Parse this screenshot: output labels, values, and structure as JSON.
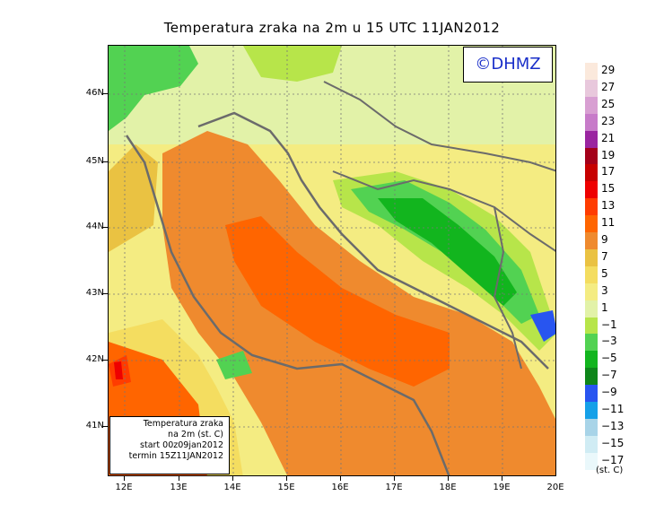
{
  "title": "Temperatura zraka na 2m u 15 UTC 11JAN2012",
  "logo": "©DHMZ",
  "info": {
    "line1": "Temperatura zraka",
    "line2": "na 2m (st. C)",
    "line3": "start 00z09jan2012",
    "line4": "termin 15Z11JAN2012"
  },
  "lat_labels": [
    "46N",
    "45N",
    "44N",
    "43N",
    "42N",
    "41N"
  ],
  "lon_labels": [
    "12E",
    "13E",
    "14E",
    "15E",
    "16E",
    "17E",
    "18E",
    "19E",
    "20E"
  ],
  "legend": {
    "labels": [
      "29",
      "27",
      "25",
      "23",
      "21",
      "19",
      "17",
      "15",
      "13",
      "11",
      "9",
      "7",
      "5",
      "3",
      "1",
      "−1",
      "−3",
      "−5",
      "−7",
      "−9",
      "−11",
      "−13",
      "−15",
      "−17"
    ],
    "colors": [
      "#fbe9dc",
      "#e8c8dc",
      "#d89fd2",
      "#c77bc9",
      "#9a25a0",
      "#a4001a",
      "#c70000",
      "#ee0000",
      "#ff3c00",
      "#ff6500",
      "#ef8a2e",
      "#eac242",
      "#f4dd60",
      "#f4ec82",
      "#e2f2a8",
      "#b7e54a",
      "#52d252",
      "#12b51e",
      "#0e861a",
      "#2855f0",
      "#15a0e8",
      "#a8d4e8",
      "#d0ecf4",
      "#eaf8fb"
    ],
    "unit": "(st. C)"
  }
}
